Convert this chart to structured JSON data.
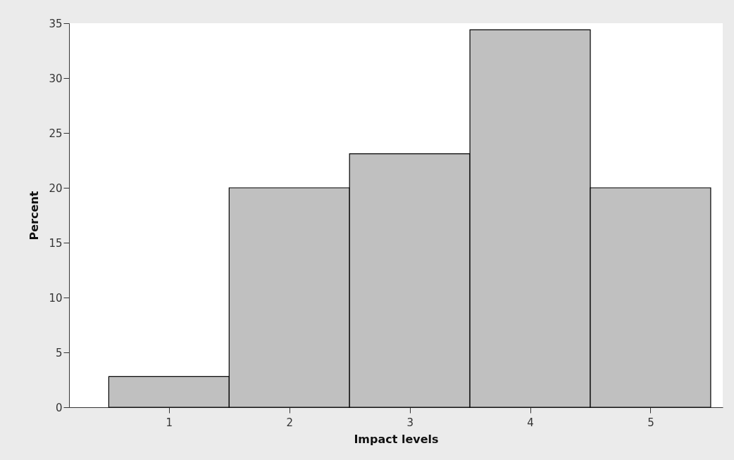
{
  "chart_data": {
    "type": "histogram",
    "xlabel": "Impact levels",
    "ylabel": "Percent",
    "bins": [
      0.5,
      1.5,
      2.5,
      3.5,
      4.5,
      5.5
    ],
    "values": [
      2.8,
      20,
      23.1,
      34.4,
      20
    ],
    "color": "#c0c0c0",
    "xlim": [
      0.17,
      5.6
    ],
    "xticks": [
      1,
      2,
      3,
      4,
      5
    ],
    "ylim": [
      0,
      35
    ],
    "yticks": [
      0,
      5,
      10,
      15,
      20,
      25,
      30,
      35
    ],
    "grid": false
  }
}
